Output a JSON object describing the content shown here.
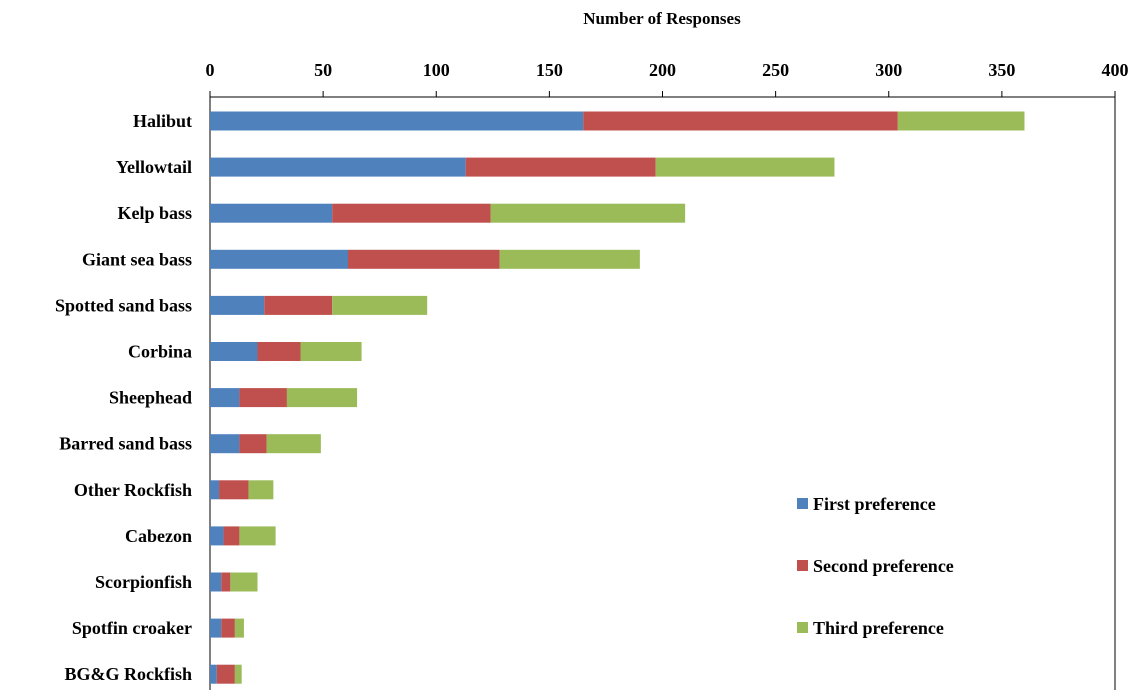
{
  "chart_data": {
    "type": "bar",
    "orientation": "horizontal",
    "stacked": true,
    "title": "",
    "xlabel": "Number of Responses",
    "ylabel": "",
    "xlim": [
      0,
      400
    ],
    "xticks": [
      0,
      50,
      100,
      150,
      200,
      250,
      300,
      350,
      400
    ],
    "x_axis_position": "top",
    "grid": false,
    "legend_position": "bottom-right",
    "categories": [
      "Halibut",
      "Yellowtail",
      "Kelp bass",
      "Giant sea bass",
      "Spotted sand bass",
      "Corbina",
      "Sheephead",
      "Barred sand bass",
      "Other Rockfish",
      "Cabezon",
      "Scorpionfish",
      "Spotfin croaker",
      "BG&G Rockfish"
    ],
    "series": [
      {
        "name": "First preference",
        "color": "#4F81BD",
        "values": [
          165,
          113,
          54,
          61,
          24,
          21,
          13,
          13,
          4,
          6,
          5,
          5,
          3
        ]
      },
      {
        "name": "Second preference",
        "color": "#C0504D",
        "values": [
          139,
          84,
          70,
          67,
          30,
          19,
          21,
          12,
          13,
          7,
          4,
          6,
          8
        ]
      },
      {
        "name": "Third preference",
        "color": "#9BBB59",
        "values": [
          56,
          79,
          86,
          62,
          42,
          27,
          31,
          24,
          11,
          16,
          12,
          4,
          3
        ]
      }
    ]
  }
}
